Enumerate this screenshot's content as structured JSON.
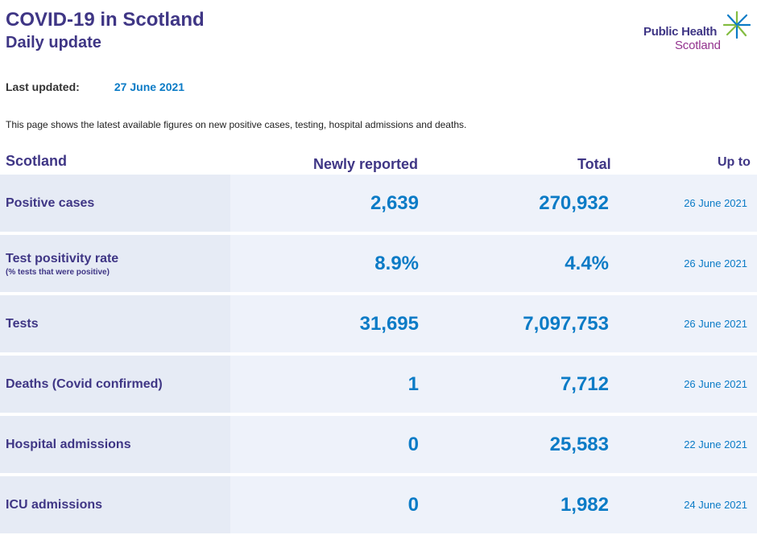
{
  "header": {
    "title": "COVID-19 in Scotland",
    "subtitle": "Daily update"
  },
  "logo": {
    "line1": "Public Health",
    "line2": "Scotland",
    "icon": "star-burst-icon",
    "colors": {
      "purple": "#3f3685",
      "magenta": "#93328e",
      "green": "#83bc41",
      "blue": "#0b7bc6"
    }
  },
  "updated": {
    "label": "Last updated:",
    "value": "27 June 2021"
  },
  "intro": "This page shows the latest available figures on new positive cases, testing, hospital admissions and deaths.",
  "columns": {
    "scotland": "Scotland",
    "newly_reported": "Newly reported",
    "total": "Total",
    "up_to": "Up to"
  },
  "rows": [
    {
      "label": "Positive cases",
      "sublabel": "",
      "new": "2,639",
      "total": "270,932",
      "up_to": "26 June 2021"
    },
    {
      "label": "Test positivity rate",
      "sublabel": "(% tests that were positive)",
      "new": "8.9%",
      "total": "4.4%",
      "up_to": "26 June 2021"
    },
    {
      "label": "Tests",
      "sublabel": "",
      "new": "31,695",
      "total": "7,097,753",
      "up_to": "26 June 2021"
    },
    {
      "label": "Deaths (Covid confirmed)",
      "sublabel": "",
      "new": "1",
      "total": "7,712",
      "up_to": "26 June 2021"
    },
    {
      "label": "Hospital admissions",
      "sublabel": "",
      "new": "0",
      "total": "25,583",
      "up_to": "22 June 2021"
    },
    {
      "label": "ICU admissions",
      "sublabel": "",
      "new": "0",
      "total": "1,982",
      "up_to": "24 June 2021"
    }
  ]
}
